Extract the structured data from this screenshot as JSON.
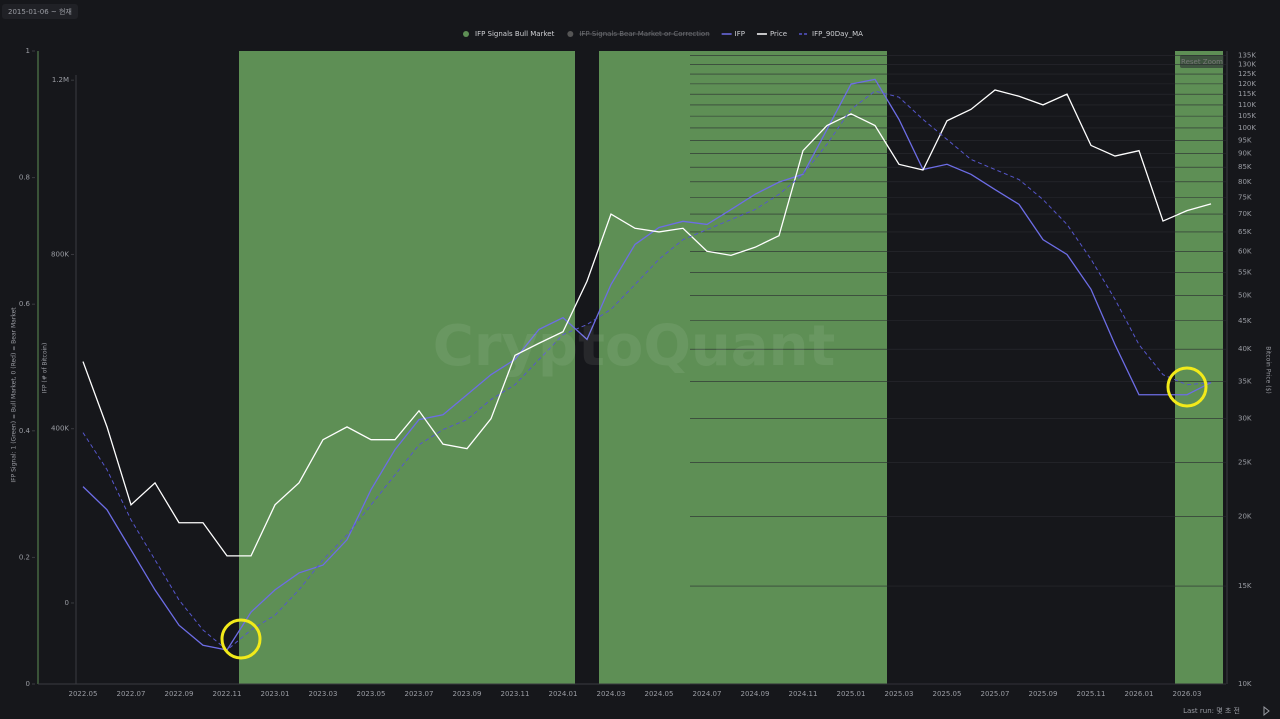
{
  "chart_data": {
    "type": "line",
    "header": "2015-01-06 ~ 현재",
    "watermark": "CryptoQuant",
    "reset_zoom": "Reset Zoom",
    "last_run": "Last run: 몇 초 전",
    "categories": [
      "2022.05",
      null,
      "2022.07",
      null,
      "2022.09",
      null,
      "2022.11",
      null,
      "2023.01",
      null,
      "2023.03",
      null,
      "2023.05",
      null,
      "2023.07",
      null,
      "2023.09",
      null,
      "2023.11",
      null,
      "2024.01",
      null,
      "2024.03",
      null,
      "2024.05",
      null,
      "2024.07",
      null,
      "2024.09",
      null,
      "2024.11",
      null,
      "2025.01",
      null,
      "2025.03",
      null,
      "2025.05",
      null,
      "2025.07",
      null,
      "2025.09",
      null,
      "2025.11",
      null,
      "2026.01",
      null,
      "2026.03",
      null
    ],
    "y_label": "IFP Signal: 1 (Green) = Bull Market, 0 (Red) = Bear Market",
    "ylim": [
      0,
      1
    ],
    "yticks": [
      0,
      0.2,
      0.4,
      0.6,
      0.8,
      1
    ],
    "y2_label": "IFP (# of Bitcoin)",
    "y2lim": [
      -186000,
      1267000
    ],
    "y2ticks": [
      0,
      {
        "value": 400000,
        "label": "400K"
      },
      {
        "value": 800000,
        "label": "800K"
      },
      {
        "value": 1200000,
        "label": "1.2M"
      }
    ],
    "y3_label": "Bitcoin Price ($)",
    "y3_log": true,
    "y3lim": [
      10000,
      137500
    ],
    "y3ticks": [
      {
        "value": 10000,
        "label": "10K"
      },
      {
        "value": 15000,
        "label": "15K"
      },
      {
        "value": 20000,
        "label": "20K"
      },
      {
        "value": 25000,
        "label": "25K"
      },
      {
        "value": 30000,
        "label": "30K"
      },
      {
        "value": 35000,
        "label": "35K"
      },
      {
        "value": 40000,
        "label": "40K"
      },
      {
        "value": 45000,
        "label": "45K"
      },
      {
        "value": 50000,
        "label": "50K"
      },
      {
        "value": 55000,
        "label": "55K"
      },
      {
        "value": 60000,
        "label": "60K"
      },
      {
        "value": 65000,
        "label": "65K"
      },
      {
        "value": 70000,
        "label": "70K"
      },
      {
        "value": 75000,
        "label": "75K"
      },
      {
        "value": 80000,
        "label": "80K"
      },
      {
        "value": 85000,
        "label": "85K"
      },
      {
        "value": 90000,
        "label": "90K"
      },
      {
        "value": 95000,
        "label": "95K"
      },
      {
        "value": 100000,
        "label": "100K"
      },
      {
        "value": 105000,
        "label": "105K"
      },
      {
        "value": 110000,
        "label": "110K"
      },
      {
        "value": 115000,
        "label": "115K"
      },
      {
        "value": 120000,
        "label": "120K"
      },
      {
        "value": 125000,
        "label": "125K"
      },
      {
        "value": 130000,
        "label": "130K"
      },
      {
        "value": 135000,
        "label": "135K"
      }
    ],
    "series": [
      {
        "name": "IFP Signals Bull Market",
        "type": "bar",
        "axis": "y",
        "color": "#5e8f55",
        "values": [
          0,
          0,
          0,
          0,
          0,
          0,
          0,
          1,
          1,
          1,
          1,
          1,
          1,
          1,
          1,
          1,
          1,
          1,
          1,
          1,
          1,
          0,
          1,
          1,
          1,
          1,
          1,
          1,
          1,
          1,
          1,
          1,
          1,
          1,
          0,
          0,
          0,
          0,
          0,
          0,
          0,
          0,
          0,
          0,
          0,
          0,
          1,
          1
        ]
      },
      {
        "name": "IFP Signals Bear Market or Correction",
        "hidden": true,
        "color": "#555555"
      },
      {
        "name": "IFP",
        "type": "line",
        "axis": "y2",
        "color": "#6d6de6",
        "values": [
          267000,
          214000,
          122000,
          30000,
          -51000,
          -97000,
          -108000,
          -21000,
          30000,
          69000,
          87000,
          145000,
          260000,
          352000,
          421000,
          432000,
          478000,
          524000,
          559000,
          628000,
          655000,
          605000,
          731000,
          823000,
          862000,
          876000,
          869000,
          903000,
          938000,
          966000,
          984000,
          1087000,
          1191000,
          1202000,
          1110000,
          995000,
          1007000,
          984000,
          949000,
          915000,
          834000,
          800000,
          720000,
          593000,
          478000,
          478000,
          478000,
          506000
        ]
      },
      {
        "name": "Price",
        "type": "line",
        "axis": "y3",
        "color": "#ffffff",
        "values": [
          38000,
          29000,
          21000,
          23000,
          19500,
          19500,
          17000,
          17000,
          21000,
          23000,
          27500,
          29000,
          27500,
          27500,
          31000,
          27000,
          26500,
          30000,
          39000,
          41000,
          43000,
          53000,
          70000,
          66000,
          65000,
          66000,
          60000,
          59000,
          61000,
          64000,
          91000,
          101000,
          106000,
          101000,
          86000,
          84000,
          103000,
          108000,
          117000,
          114000,
          110000,
          115000,
          93000,
          89000,
          91000,
          68000,
          71000,
          73000
        ]
      },
      {
        "name": "IFP_90Day_MA",
        "type": "line",
        "axis": "y2",
        "dash": true,
        "color": "#5656cc",
        "values": [
          391000,
          306000,
          191000,
          99000,
          7000,
          -62000,
          -108000,
          -62000,
          -28000,
          30000,
          99000,
          156000,
          225000,
          294000,
          363000,
          398000,
          421000,
          467000,
          501000,
          559000,
          616000,
          639000,
          674000,
          731000,
          789000,
          834000,
          857000,
          880000,
          903000,
          938000,
          984000,
          1053000,
          1133000,
          1175000,
          1161000,
          1110000,
          1064000,
          1018000,
          995000,
          972000,
          926000,
          869000,
          789000,
          697000,
          593000,
          524000,
          501000,
          506000
        ]
      }
    ]
  }
}
